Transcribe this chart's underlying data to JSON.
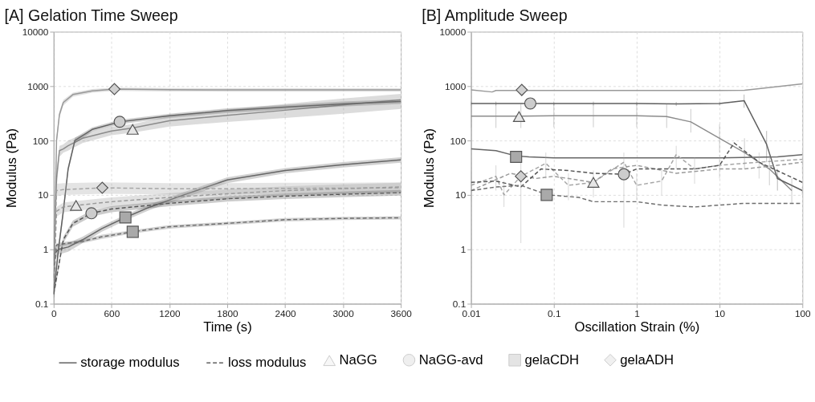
{
  "chart_data": [
    {
      "type": "line",
      "title": "[A] Gelation Time Sweep",
      "xlabel": "Time (s)",
      "ylabel": "Modulus (Pa)",
      "xlim": [
        0,
        3600
      ],
      "xticks": [
        0,
        600,
        1200,
        1800,
        2400,
        3000,
        3600
      ],
      "ylim": [
        0.1,
        10000
      ],
      "yticks": [
        0.1,
        1,
        10,
        100,
        1000,
        10000
      ],
      "log": "y",
      "grid": true,
      "legend": "bottom",
      "series": [
        {
          "type": "line",
          "line_style": "solid",
          "color": "#999999",
          "x": [
            0,
            30,
            60,
            100,
            200,
            400,
            630,
            1200,
            1800,
            2400,
            3000,
            3600
          ],
          "values": [
            0.15,
            100,
            300,
            500,
            700,
            820,
            880,
            860,
            850,
            850,
            850,
            850
          ],
          "lower": [
            0.12,
            85,
            260,
            440,
            640,
            760,
            820,
            800,
            790,
            790,
            790,
            790
          ],
          "upper": [
            0.2,
            120,
            340,
            560,
            760,
            880,
            940,
            920,
            910,
            910,
            910,
            910
          ]
        },
        {
          "type": "line",
          "line_style": "solid",
          "color": "#8c8c8c",
          "x": [
            0,
            30,
            60,
            100,
            150,
            300,
            600,
            820,
            1200,
            1800,
            2400,
            3000,
            3600
          ],
          "values": [
            0.5,
            20,
            65,
            70,
            80,
            110,
            150,
            170,
            230,
            290,
            360,
            450,
            560
          ],
          "lower": [
            0.3,
            12,
            50,
            60,
            65,
            90,
            125,
            140,
            180,
            220,
            260,
            310,
            380
          ],
          "upper": [
            0.8,
            30,
            80,
            85,
            100,
            130,
            180,
            200,
            280,
            370,
            470,
            590,
            720
          ]
        },
        {
          "type": "line",
          "name": "storage modulus",
          "line_style": "solid",
          "color": "#5f5f5f",
          "x": [
            0,
            50,
            100,
            150,
            220,
            400,
            685,
            1200,
            1800,
            2400,
            3000,
            3600
          ],
          "values": [
            0.15,
            1,
            5,
            30,
            100,
            160,
            220,
            285,
            355,
            410,
            470,
            520
          ],
          "lower": [
            0.12,
            0.8,
            4,
            26,
            88,
            145,
            200,
            260,
            320,
            370,
            420,
            470
          ],
          "upper": [
            0.2,
            1.2,
            6,
            34,
            112,
            175,
            240,
            310,
            390,
            450,
            520,
            570
          ]
        },
        {
          "type": "line",
          "line_style": "solid",
          "color": "#666666",
          "x": [
            0,
            50,
            150,
            300,
            500,
            744,
            1000,
            1350,
            1800,
            2400,
            3000,
            3600
          ],
          "values": [
            0.8,
            1,
            1.1,
            1.5,
            2.4,
            3.85,
            6,
            10,
            18.8,
            28,
            36,
            44
          ],
          "lower": [
            0.6,
            0.8,
            0.9,
            1.3,
            2.1,
            3.4,
            5.3,
            8.8,
            16.5,
            25,
            32,
            39
          ],
          "upper": [
            1,
            1.2,
            1.3,
            1.7,
            2.7,
            4.3,
            6.7,
            11.2,
            21,
            31,
            40,
            49
          ]
        },
        {
          "type": "line",
          "line_style": "dashed",
          "color": "#a6a6a6",
          "x": [
            0,
            30,
            100,
            504,
            1200,
            1800,
            2400,
            3000,
            3600
          ],
          "values": [
            0.15,
            12,
            12.5,
            13.5,
            13,
            13,
            13.2,
            13.3,
            13.5
          ],
          "lower": [
            0.12,
            9.5,
            10,
            10.5,
            10.2,
            10.2,
            10.4,
            10.5,
            10.6
          ],
          "upper": [
            0.2,
            16,
            16.5,
            17,
            16.5,
            16.5,
            16.7,
            16.8,
            17
          ]
        },
        {
          "type": "line",
          "line_style": "dashed",
          "color": "#9a9a9a",
          "x": [
            0,
            30,
            100,
            232,
            600,
            1200,
            1800,
            2400,
            3000,
            3600
          ],
          "values": [
            0.2,
            5,
            6,
            6.4,
            7.5,
            9,
            10.5,
            12,
            13,
            14
          ],
          "lower": [
            0.15,
            4,
            4.8,
            5.1,
            6,
            7.2,
            8.4,
            9.6,
            10.4,
            11.2
          ],
          "upper": [
            0.25,
            6,
            7.2,
            7.7,
            9,
            10.8,
            12.6,
            14.4,
            15.6,
            16.8
          ]
        },
        {
          "type": "line",
          "name": "loss modulus",
          "line_style": "dashed",
          "color": "#575757",
          "x": [
            0,
            30,
            100,
            200,
            392,
            600,
            1200,
            1800,
            2400,
            3000,
            3600
          ],
          "values": [
            0.15,
            0.3,
            1.5,
            3,
            4.6,
            5.5,
            7,
            8.5,
            9.5,
            10.3,
            11
          ],
          "lower": [
            0.12,
            0.25,
            1.3,
            2.6,
            4,
            4.8,
            6.2,
            7.5,
            8.4,
            9.1,
            9.7
          ],
          "upper": [
            0.2,
            0.35,
            1.7,
            3.4,
            5.2,
            6.2,
            7.8,
            9.5,
            10.6,
            11.5,
            12.3
          ]
        },
        {
          "type": "line",
          "line_style": "dashed",
          "color": "#6e6e6e",
          "x": [
            0,
            30,
            150,
            300,
            500,
            820,
            1200,
            1800,
            2400,
            3000,
            3600
          ],
          "values": [
            0.3,
            1.2,
            1.3,
            1.4,
            1.7,
            2.1,
            2.6,
            3,
            3.5,
            3.7,
            3.8
          ],
          "lower": [
            0.25,
            1.1,
            1.2,
            1.3,
            1.55,
            1.95,
            2.4,
            2.8,
            3.25,
            3.45,
            3.55
          ],
          "upper": [
            0.35,
            1.3,
            1.4,
            1.5,
            1.85,
            2.25,
            2.8,
            3.2,
            3.75,
            3.95,
            4.05
          ]
        },
        {
          "type": "scatter",
          "name": "NaGG",
          "marker": "triangle",
          "color": "#e6e6e6",
          "x": [
            819,
            232
          ],
          "values": [
            160,
            6.4
          ]
        },
        {
          "type": "scatter",
          "name": "NaGG-avd",
          "marker": "circle",
          "color": "#cccccc",
          "x": [
            685,
            392
          ],
          "values": [
            221,
            4.6
          ]
        },
        {
          "type": "scatter",
          "name": "gelaCDH",
          "marker": "square",
          "color": "#a9a9a9",
          "x": [
            744,
            820
          ],
          "values": [
            3.85,
            2.1
          ]
        },
        {
          "type": "scatter",
          "name": "gelaADH",
          "marker": "diamond",
          "color": "#d0d0d0",
          "x": [
            630,
            504
          ],
          "values": [
            880,
            13.5
          ]
        }
      ]
    },
    {
      "type": "line",
      "title": "[B] Amplitude Sweep",
      "xlabel": "Oscillation Strain (%)",
      "ylabel": "Modulus (Pa)",
      "xlim": [
        0.01,
        100
      ],
      "xticks": [
        0.01,
        0.1,
        1,
        10,
        100
      ],
      "ylim": [
        0.1,
        10000
      ],
      "yticks": [
        0.1,
        1,
        10,
        100,
        1000,
        10000
      ],
      "log": "xy",
      "grid": true,
      "legend": "bottom",
      "series": [
        {
          "type": "line",
          "line_style": "solid",
          "color": "#999999",
          "x": [
            0.01,
            0.018,
            0.02,
            0.1,
            1,
            10,
            20,
            30,
            100
          ],
          "values": [
            850,
            780,
            830,
            830,
            830,
            830,
            840,
            900,
            1100
          ]
        },
        {
          "type": "line",
          "line_style": "solid",
          "color": "#8c8c8c",
          "x": [
            0.01,
            0.02,
            0.04,
            0.1,
            0.3,
            1,
            2.3,
            4.5,
            10,
            20,
            40,
            74.5
          ],
          "values": [
            280,
            280,
            280,
            285,
            285,
            285,
            275,
            220,
            110,
            60,
            30,
            12
          ],
          "errors": [
            [
              170,
              480
            ],
            [
              170,
              480
            ],
            [
              170,
              480
            ],
            [
              175,
              490
            ],
            [
              175,
              490
            ],
            [
              175,
              490
            ],
            [
              170,
              470
            ],
            [
              140,
              380
            ],
            [
              60,
              200
            ],
            [
              30,
              110
            ],
            [
              15,
              60
            ],
            [
              7,
              20
            ]
          ]
        },
        {
          "type": "line",
          "line_style": "solid",
          "color": "#5f5f5f",
          "x": [
            0.01,
            0.02,
            0.05,
            0.1,
            0.3,
            1,
            3,
            10,
            19.8,
            37,
            50,
            100
          ],
          "values": [
            480,
            480,
            480,
            480,
            480,
            480,
            470,
            480,
            540,
            85,
            20,
            12
          ],
          "errors": [
            [
              440,
              520
            ],
            [
              440,
              520
            ],
            [
              440,
              520
            ],
            [
              440,
              520
            ],
            [
              440,
              520
            ],
            [
              440,
              520
            ],
            [
              430,
              510
            ],
            [
              440,
              520
            ],
            [
              400,
              700
            ],
            [
              40,
              150
            ],
            [
              12,
              30
            ],
            [
              10,
              14
            ]
          ]
        },
        {
          "type": "line",
          "line_style": "solid",
          "color": "#666666",
          "x": [
            0.01,
            0.02,
            0.035,
            0.05,
            0.1,
            1,
            10,
            50,
            100
          ],
          "values": [
            70,
            65,
            52,
            50,
            48,
            48,
            48,
            50,
            55
          ]
        },
        {
          "type": "line",
          "line_style": "dashed",
          "color": "#a6a6a6",
          "x": [
            0.01,
            0.02,
            0.025,
            0.04,
            0.08,
            0.15,
            0.3,
            0.7,
            1,
            2,
            3,
            5,
            10,
            30,
            100
          ],
          "values": [
            15,
            22,
            10,
            22,
            38,
            15,
            17,
            40,
            15,
            18,
            55,
            30,
            35,
            40,
            45
          ],
          "errors": [
            [
              8,
              28
            ],
            [
              12,
              35
            ],
            [
              6,
              18
            ],
            [
              1.3,
              40
            ],
            [
              20,
              60
            ],
            [
              8,
              25
            ],
            [
              9,
              28
            ],
            [
              2.5,
              60
            ],
            [
              8,
              25
            ],
            [
              10,
              30
            ],
            [
              30,
              80
            ],
            [
              16,
              50
            ],
            [
              20,
              55
            ],
            [
              20,
              60
            ],
            [
              25,
              65
            ]
          ]
        },
        {
          "type": "line",
          "line_style": "dashed",
          "color": "#9a9a9a",
          "x": [
            0.01,
            0.03,
            0.06,
            0.1,
            0.3,
            0.5,
            1,
            3,
            10,
            20,
            50,
            100
          ],
          "values": [
            12,
            25,
            20,
            22,
            17,
            30,
            35,
            25,
            30,
            30,
            35,
            40
          ]
        },
        {
          "type": "line",
          "line_style": "dashed",
          "color": "#555555",
          "x": [
            0.01,
            0.02,
            0.04,
            0.07,
            0.15,
            0.3,
            0.7,
            1,
            2,
            5,
            10,
            15,
            30,
            100
          ],
          "values": [
            17,
            18,
            14,
            30,
            28,
            25,
            24,
            30,
            30,
            30,
            35,
            90,
            40,
            17
          ]
        },
        {
          "type": "line",
          "line_style": "dashed",
          "color": "#6e6e6e",
          "x": [
            0.01,
            0.02,
            0.04,
            0.085,
            0.2,
            0.3,
            1,
            2,
            5,
            10,
            20,
            100
          ],
          "values": [
            12,
            14,
            15,
            10,
            9,
            7.5,
            7.5,
            6.5,
            6,
            6.5,
            7,
            7
          ]
        },
        {
          "type": "scatter",
          "marker": "triangle",
          "color": "#e6e6e6",
          "x": [
            0.038,
            0.3
          ],
          "values": [
            275,
            17
          ]
        },
        {
          "type": "scatter",
          "marker": "circle",
          "color": "#cccccc",
          "x": [
            0.052,
            0.7
          ],
          "values": [
            480,
            24
          ]
        },
        {
          "type": "scatter",
          "marker": "square",
          "color": "#a9a9a9",
          "x": [
            0.035,
            0.082
          ],
          "values": [
            50,
            10
          ]
        },
        {
          "type": "scatter",
          "marker": "diamond",
          "color": "#d0d0d0",
          "x": [
            0.041,
            0.04
          ],
          "values": [
            850,
            22
          ]
        }
      ]
    }
  ]
}
